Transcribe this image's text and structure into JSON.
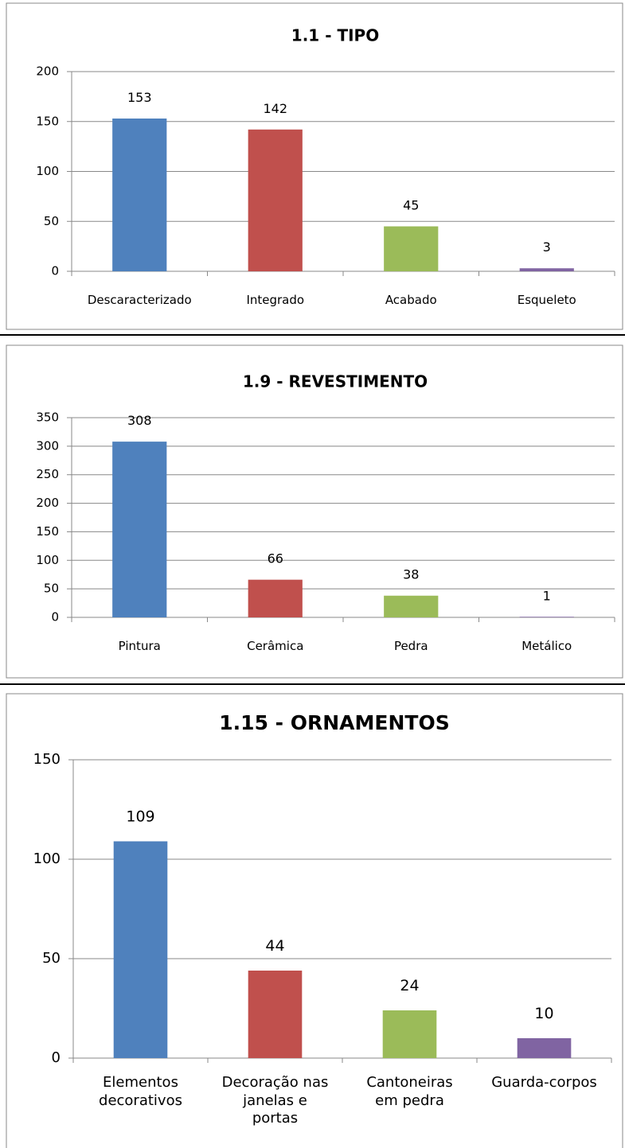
{
  "chart_data": [
    {
      "type": "bar",
      "title": "1.1 - TIPO",
      "categories": [
        "Descaracterizado",
        "Integrado",
        "Acabado",
        "Esqueleto"
      ],
      "values": [
        153,
        142,
        45,
        3
      ],
      "colors": [
        "#4f81bd",
        "#c0504d",
        "#9bbb59",
        "#8064a2"
      ],
      "ylim": [
        0,
        200
      ],
      "yticks": [
        0,
        50,
        100,
        150,
        200
      ],
      "grid": true
    },
    {
      "type": "bar",
      "title": "1.9 - REVESTIMENTO",
      "categories": [
        "Pintura",
        "Cerâmica",
        "Pedra",
        "Metálico"
      ],
      "values": [
        308,
        66,
        38,
        1
      ],
      "colors": [
        "#4f81bd",
        "#c0504d",
        "#9bbb59",
        "#8064a2"
      ],
      "ylim": [
        0,
        350
      ],
      "yticks": [
        0,
        50,
        100,
        150,
        200,
        250,
        300,
        350
      ],
      "grid": true
    },
    {
      "type": "bar",
      "title": "1.15 - ORNAMENTOS",
      "categories": [
        "Elementos\ndecorativos",
        "Decoração nas\njanelas e\nportas",
        "Cantoneiras\nem pedra",
        "Guarda-corpos"
      ],
      "values": [
        109,
        44,
        24,
        10
      ],
      "colors": [
        "#4f81bd",
        "#c0504d",
        "#9bbb59",
        "#8064a2"
      ],
      "ylim": [
        0,
        150
      ],
      "yticks": [
        0,
        50,
        100,
        150
      ],
      "grid": true
    }
  ]
}
